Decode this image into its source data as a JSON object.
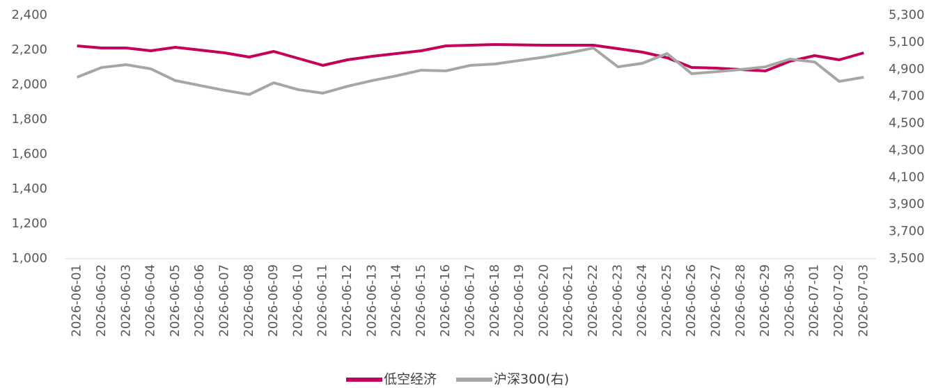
{
  "chart_data": {
    "type": "line",
    "categories": [
      "2026-06-01",
      "2026-06-02",
      "2026-06-03",
      "2026-06-04",
      "2026-06-05",
      "2026-06-06",
      "2026-06-07",
      "2026-06-08",
      "2026-06-09",
      "2026-06-10",
      "2026-06-11",
      "2026-06-12",
      "2026-06-13",
      "2026-06-14",
      "2026-06-15",
      "2026-06-16",
      "2026-06-17",
      "2026-06-18",
      "2026-06-19",
      "2026-06-20",
      "2026-06-21",
      "2026-06-22",
      "2026-06-23",
      "2026-06-24",
      "2026-06-25",
      "2026-06-26",
      "2026-06-27",
      "2026-06-28",
      "2026-06-29",
      "2026-06-30",
      "2026-07-01",
      "2026-07-02",
      "2026-07-03"
    ],
    "series": [
      {
        "name": "低空经济",
        "color": "#c3005a",
        "axis": "y",
        "values": [
          2224,
          2212,
          2212,
          2196,
          2216,
          2200,
          2184,
          2160,
          2192,
          2152,
          2112,
          2144,
          2164,
          2180,
          2196,
          2224,
          2228,
          2232,
          2230,
          2228,
          2228,
          2228,
          2208,
          2188,
          2156,
          2100,
          2096,
          2088,
          2080,
          2136,
          2168,
          2144,
          2184
        ]
      },
      {
        "name": "沪深300(右)",
        "color": "#a6a6a6",
        "axis": "y2",
        "values": [
          4842,
          4914,
          4935,
          4904,
          4817,
          4781,
          4745,
          4714,
          4801,
          4750,
          4724,
          4775,
          4817,
          4853,
          4894,
          4889,
          4930,
          4940,
          4966,
          4991,
          5022,
          5058,
          4919,
          4945,
          5017,
          4868,
          4883,
          4899,
          4919,
          4976,
          4955,
          4811,
          4842
        ]
      }
    ],
    "ylim": [
      1000,
      2400
    ],
    "yticks": [
      {
        "value": 1000,
        "label": "1,000"
      },
      {
        "value": 1200,
        "label": "1,200"
      },
      {
        "value": 1400,
        "label": "1,400"
      },
      {
        "value": 1600,
        "label": "1,600"
      },
      {
        "value": 1800,
        "label": "1,800"
      },
      {
        "value": 2000,
        "label": "2,000"
      },
      {
        "value": 2200,
        "label": "2,200"
      },
      {
        "value": 2400,
        "label": "2,400"
      }
    ],
    "y2lim": [
      3500,
      5300
    ],
    "y2ticks": [
      {
        "value": 3500,
        "label": "3,500"
      },
      {
        "value": 3700,
        "label": "3,700"
      },
      {
        "value": 3900,
        "label": "3,900"
      },
      {
        "value": 4100,
        "label": "4,100"
      },
      {
        "value": 4300,
        "label": "4,300"
      },
      {
        "value": 4500,
        "label": "4,500"
      },
      {
        "value": 4700,
        "label": "4,700"
      },
      {
        "value": 4900,
        "label": "4,900"
      },
      {
        "value": 5100,
        "label": "5,100"
      },
      {
        "value": 5300,
        "label": "5,300"
      }
    ],
    "grid": false,
    "legend": "bottom"
  }
}
